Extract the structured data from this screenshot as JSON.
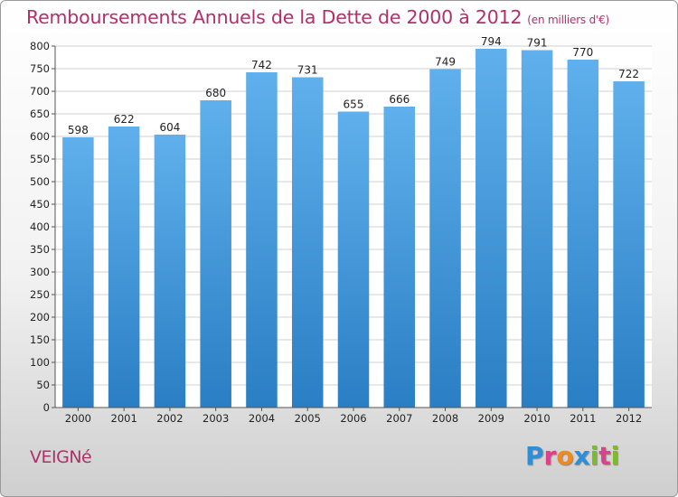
{
  "header": {
    "title": "Remboursements Annuels de la Dette de 2000 à 2012",
    "subtitle": "(en milliers d'€)"
  },
  "footer": {
    "place": "VEIGNé",
    "logo": "Proxiti"
  },
  "colors": {
    "title": "#b0306a",
    "bar_top": "#5fb0ec",
    "bar_bottom": "#2a7ec3",
    "grid": "#d0d0d0",
    "logo_letters": [
      "#2e8fd6",
      "#e0408a",
      "#f08a1c",
      "#2e8fd6",
      "#7cbc2a",
      "#e0408a",
      "#7cbc2a"
    ]
  },
  "chart_data": {
    "type": "bar",
    "title": "Remboursements Annuels de la Dette de 2000 à 2012",
    "subtitle": "(en milliers d'€)",
    "xlabel": "",
    "ylabel": "",
    "categories": [
      "2000",
      "2001",
      "2002",
      "2003",
      "2004",
      "2005",
      "2006",
      "2007",
      "2008",
      "2009",
      "2010",
      "2011",
      "2012"
    ],
    "values": [
      598,
      622,
      604,
      680,
      742,
      731,
      655,
      666,
      749,
      794,
      791,
      770,
      722
    ],
    "ylim": [
      0,
      800
    ],
    "yticks": [
      0,
      50,
      100,
      150,
      200,
      250,
      300,
      350,
      400,
      450,
      500,
      550,
      600,
      650,
      700,
      750,
      800
    ],
    "grid": true,
    "data_labels": true
  }
}
